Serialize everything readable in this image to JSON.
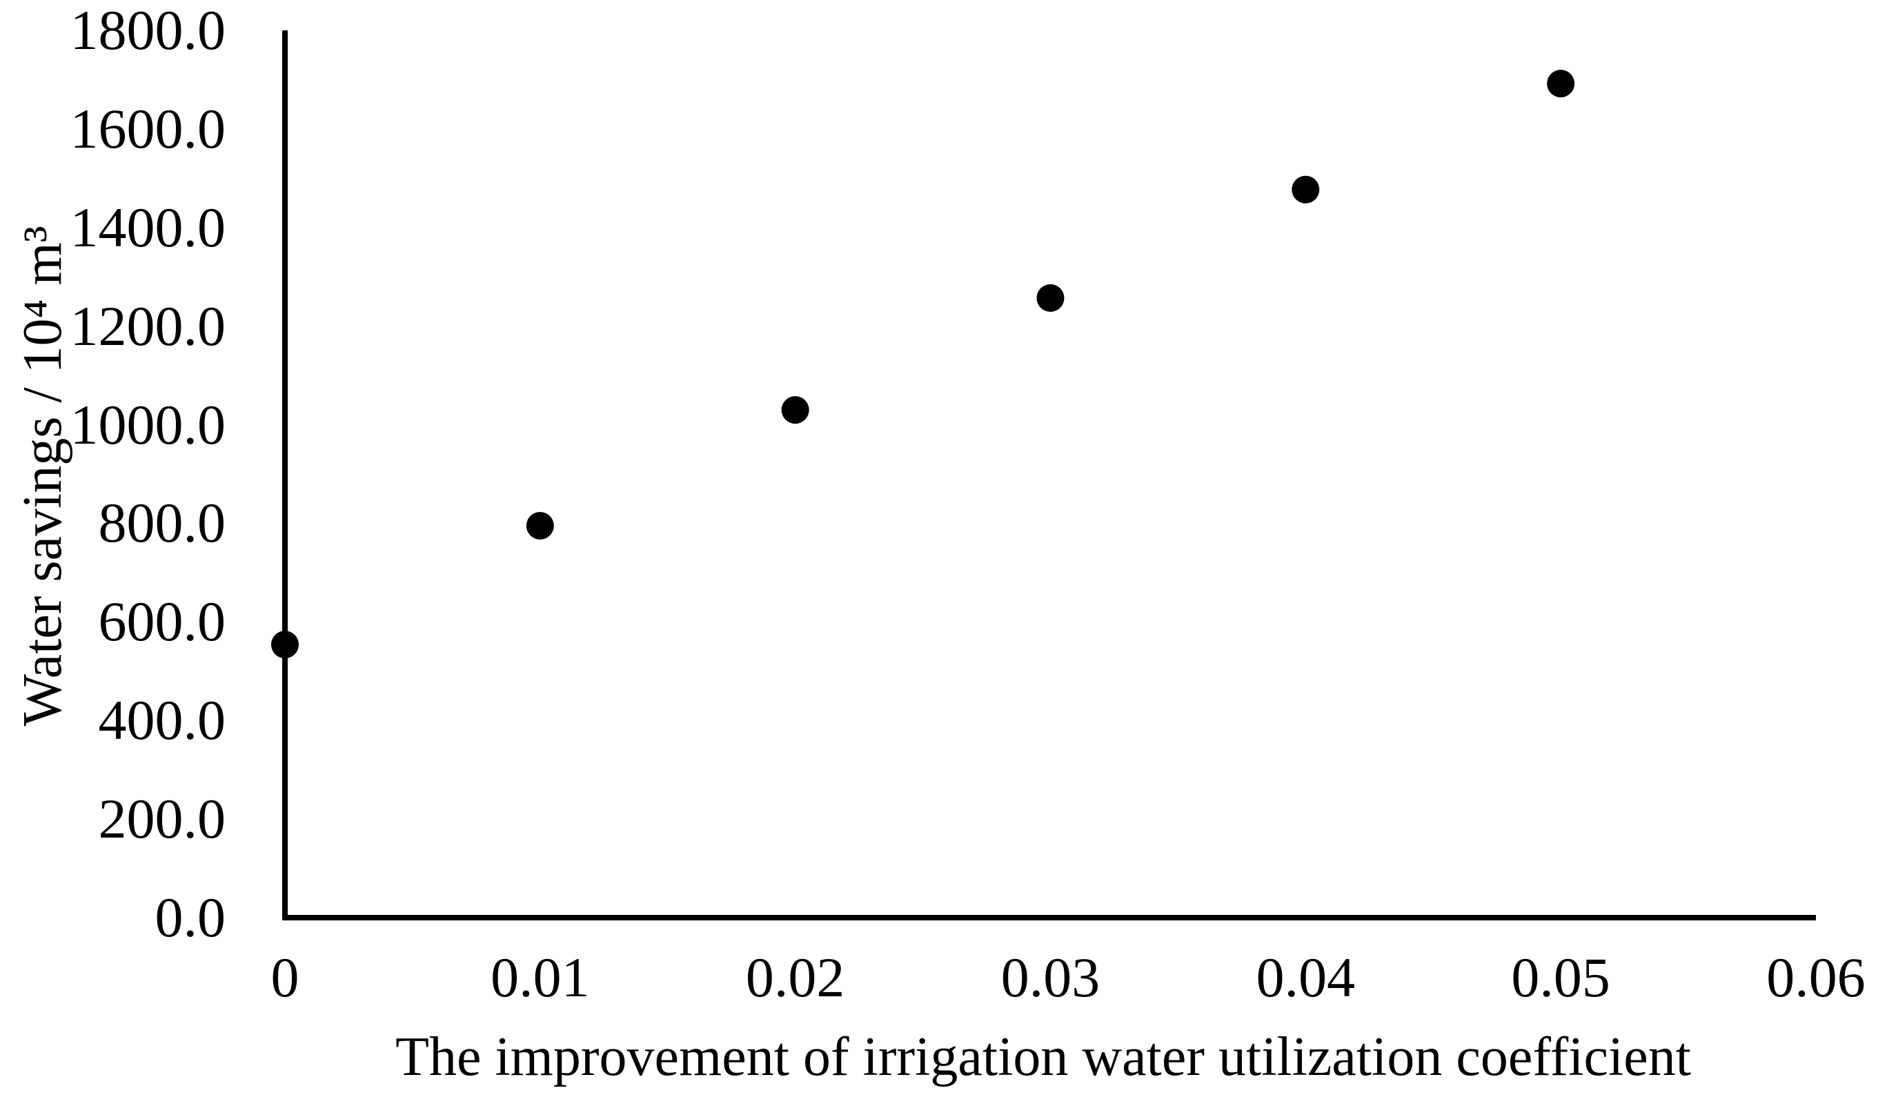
{
  "chart_data": {
    "type": "scatter",
    "x": [
      0,
      0.01,
      0.02,
      0.03,
      0.04,
      0.05
    ],
    "y": [
      554,
      795,
      1030,
      1257,
      1477,
      1692
    ],
    "xlabel": "The improvement of irrigation water utilization coefficient",
    "ylabel": "Water savings / 10⁴ m³",
    "xlim": [
      0,
      0.06
    ],
    "ylim": [
      0,
      1800
    ],
    "x_ticks": [
      "0",
      "0.01",
      "0.02",
      "0.03",
      "0.04",
      "0.05",
      "0.06"
    ],
    "y_ticks": [
      "0.0",
      "200.0",
      "400.0",
      "600.0",
      "800.0",
      "1000.0",
      "1200.0",
      "1400.0",
      "1600.0",
      "1800.0"
    ],
    "grid": false,
    "legend": false,
    "marker_color": "#000000",
    "axis_color": "#000000",
    "background": "#ffffff",
    "marker_radius_px": 20
  }
}
